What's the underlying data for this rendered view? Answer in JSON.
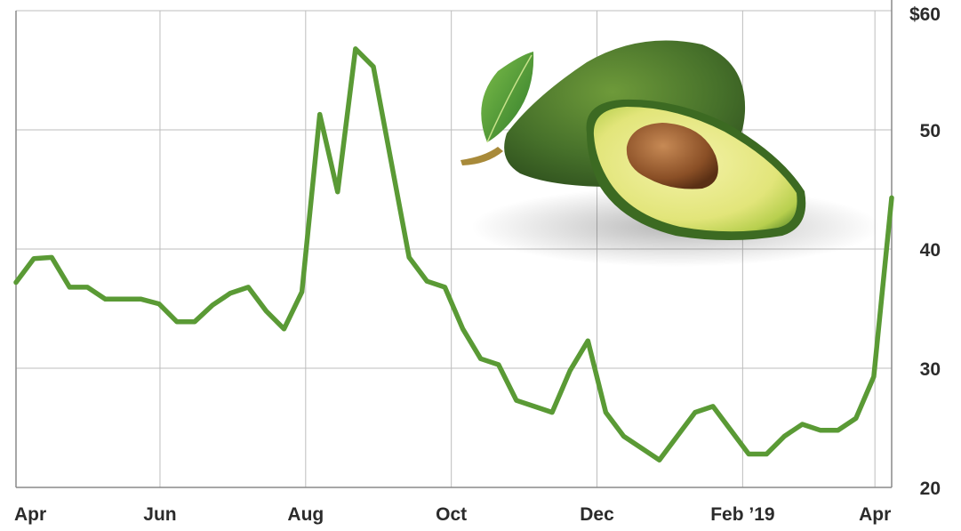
{
  "chart_data": {
    "type": "line",
    "y_ticks": [
      "$60",
      "50",
      "40",
      "30",
      "20"
    ],
    "y_tick_values": [
      60,
      50,
      40,
      30,
      20
    ],
    "x_ticks": [
      {
        "label": "Apr",
        "t": 0
      },
      {
        "label": "Jun",
        "t": 8.6
      },
      {
        "label": "Aug",
        "t": 17.3
      },
      {
        "label": "Oct",
        "t": 26.0
      },
      {
        "label": "Dec",
        "t": 34.7
      },
      {
        "label": "Feb ’19",
        "t": 43.4
      },
      {
        "label": "Apr",
        "t": 51.3
      }
    ],
    "ylim": [
      20,
      60
    ],
    "xlim": [
      0,
      52.3
    ],
    "grid": true,
    "y_axis_side": "right",
    "series": [
      {
        "color": "#5a9a35",
        "values": [
          37.2,
          39.2,
          39.3,
          36.8,
          36.8,
          35.8,
          35.8,
          35.8,
          35.4,
          33.9,
          33.9,
          35.3,
          36.3,
          36.8,
          34.8,
          33.3,
          36.4,
          51.3,
          44.8,
          56.8,
          55.3,
          47.3,
          39.3,
          37.3,
          36.8,
          33.3,
          30.8,
          30.3,
          27.3,
          26.8,
          26.3,
          29.8,
          32.3,
          26.3,
          24.3,
          23.3,
          22.3,
          24.3,
          26.3,
          26.8,
          24.8,
          22.8,
          22.8,
          24.3,
          25.3,
          24.8,
          24.8,
          25.8,
          29.3,
          44.3
        ]
      }
    ]
  },
  "decoration": {
    "icon": "avocado-illustration-icon"
  }
}
